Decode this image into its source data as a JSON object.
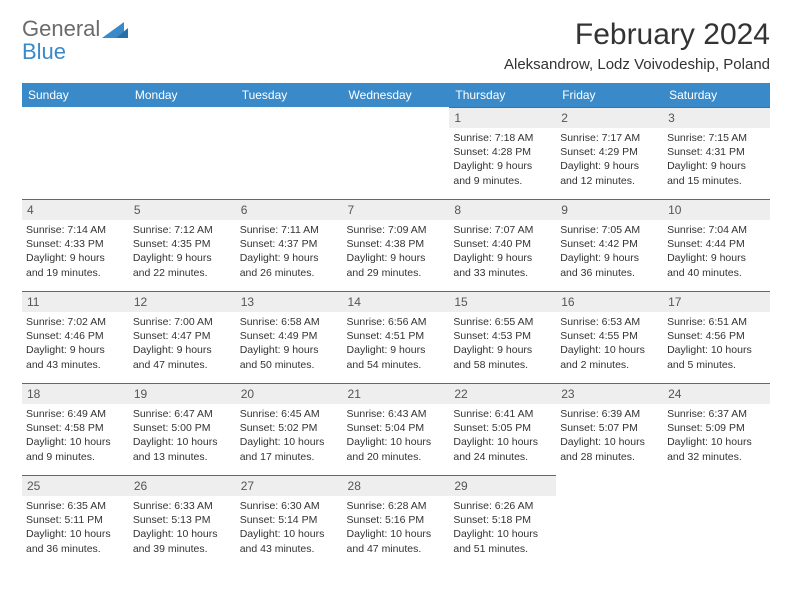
{
  "logo": {
    "text1": "General",
    "text2": "Blue"
  },
  "title": "February 2024",
  "location": "Aleksandrow, Lodz Voivodeship, Poland",
  "colors": {
    "header_bg": "#3a8ac9",
    "header_text": "#ffffff",
    "daynum_bg": "#eeeeee",
    "border": "#5a6a78",
    "body_text": "#333333",
    "logo_gray": "#6b6b6b",
    "logo_blue": "#3a8ac9"
  },
  "weekdays": [
    "Sunday",
    "Monday",
    "Tuesday",
    "Wednesday",
    "Thursday",
    "Friday",
    "Saturday"
  ],
  "weeks": [
    [
      null,
      null,
      null,
      null,
      {
        "n": "1",
        "sr": "Sunrise: 7:18 AM",
        "ss": "Sunset: 4:28 PM",
        "dl1": "Daylight: 9 hours",
        "dl2": "and 9 minutes."
      },
      {
        "n": "2",
        "sr": "Sunrise: 7:17 AM",
        "ss": "Sunset: 4:29 PM",
        "dl1": "Daylight: 9 hours",
        "dl2": "and 12 minutes."
      },
      {
        "n": "3",
        "sr": "Sunrise: 7:15 AM",
        "ss": "Sunset: 4:31 PM",
        "dl1": "Daylight: 9 hours",
        "dl2": "and 15 minutes."
      }
    ],
    [
      {
        "n": "4",
        "sr": "Sunrise: 7:14 AM",
        "ss": "Sunset: 4:33 PM",
        "dl1": "Daylight: 9 hours",
        "dl2": "and 19 minutes."
      },
      {
        "n": "5",
        "sr": "Sunrise: 7:12 AM",
        "ss": "Sunset: 4:35 PM",
        "dl1": "Daylight: 9 hours",
        "dl2": "and 22 minutes."
      },
      {
        "n": "6",
        "sr": "Sunrise: 7:11 AM",
        "ss": "Sunset: 4:37 PM",
        "dl1": "Daylight: 9 hours",
        "dl2": "and 26 minutes."
      },
      {
        "n": "7",
        "sr": "Sunrise: 7:09 AM",
        "ss": "Sunset: 4:38 PM",
        "dl1": "Daylight: 9 hours",
        "dl2": "and 29 minutes."
      },
      {
        "n": "8",
        "sr": "Sunrise: 7:07 AM",
        "ss": "Sunset: 4:40 PM",
        "dl1": "Daylight: 9 hours",
        "dl2": "and 33 minutes."
      },
      {
        "n": "9",
        "sr": "Sunrise: 7:05 AM",
        "ss": "Sunset: 4:42 PM",
        "dl1": "Daylight: 9 hours",
        "dl2": "and 36 minutes."
      },
      {
        "n": "10",
        "sr": "Sunrise: 7:04 AM",
        "ss": "Sunset: 4:44 PM",
        "dl1": "Daylight: 9 hours",
        "dl2": "and 40 minutes."
      }
    ],
    [
      {
        "n": "11",
        "sr": "Sunrise: 7:02 AM",
        "ss": "Sunset: 4:46 PM",
        "dl1": "Daylight: 9 hours",
        "dl2": "and 43 minutes."
      },
      {
        "n": "12",
        "sr": "Sunrise: 7:00 AM",
        "ss": "Sunset: 4:47 PM",
        "dl1": "Daylight: 9 hours",
        "dl2": "and 47 minutes."
      },
      {
        "n": "13",
        "sr": "Sunrise: 6:58 AM",
        "ss": "Sunset: 4:49 PM",
        "dl1": "Daylight: 9 hours",
        "dl2": "and 50 minutes."
      },
      {
        "n": "14",
        "sr": "Sunrise: 6:56 AM",
        "ss": "Sunset: 4:51 PM",
        "dl1": "Daylight: 9 hours",
        "dl2": "and 54 minutes."
      },
      {
        "n": "15",
        "sr": "Sunrise: 6:55 AM",
        "ss": "Sunset: 4:53 PM",
        "dl1": "Daylight: 9 hours",
        "dl2": "and 58 minutes."
      },
      {
        "n": "16",
        "sr": "Sunrise: 6:53 AM",
        "ss": "Sunset: 4:55 PM",
        "dl1": "Daylight: 10 hours",
        "dl2": "and 2 minutes."
      },
      {
        "n": "17",
        "sr": "Sunrise: 6:51 AM",
        "ss": "Sunset: 4:56 PM",
        "dl1": "Daylight: 10 hours",
        "dl2": "and 5 minutes."
      }
    ],
    [
      {
        "n": "18",
        "sr": "Sunrise: 6:49 AM",
        "ss": "Sunset: 4:58 PM",
        "dl1": "Daylight: 10 hours",
        "dl2": "and 9 minutes."
      },
      {
        "n": "19",
        "sr": "Sunrise: 6:47 AM",
        "ss": "Sunset: 5:00 PM",
        "dl1": "Daylight: 10 hours",
        "dl2": "and 13 minutes."
      },
      {
        "n": "20",
        "sr": "Sunrise: 6:45 AM",
        "ss": "Sunset: 5:02 PM",
        "dl1": "Daylight: 10 hours",
        "dl2": "and 17 minutes."
      },
      {
        "n": "21",
        "sr": "Sunrise: 6:43 AM",
        "ss": "Sunset: 5:04 PM",
        "dl1": "Daylight: 10 hours",
        "dl2": "and 20 minutes."
      },
      {
        "n": "22",
        "sr": "Sunrise: 6:41 AM",
        "ss": "Sunset: 5:05 PM",
        "dl1": "Daylight: 10 hours",
        "dl2": "and 24 minutes."
      },
      {
        "n": "23",
        "sr": "Sunrise: 6:39 AM",
        "ss": "Sunset: 5:07 PM",
        "dl1": "Daylight: 10 hours",
        "dl2": "and 28 minutes."
      },
      {
        "n": "24",
        "sr": "Sunrise: 6:37 AM",
        "ss": "Sunset: 5:09 PM",
        "dl1": "Daylight: 10 hours",
        "dl2": "and 32 minutes."
      }
    ],
    [
      {
        "n": "25",
        "sr": "Sunrise: 6:35 AM",
        "ss": "Sunset: 5:11 PM",
        "dl1": "Daylight: 10 hours",
        "dl2": "and 36 minutes."
      },
      {
        "n": "26",
        "sr": "Sunrise: 6:33 AM",
        "ss": "Sunset: 5:13 PM",
        "dl1": "Daylight: 10 hours",
        "dl2": "and 39 minutes."
      },
      {
        "n": "27",
        "sr": "Sunrise: 6:30 AM",
        "ss": "Sunset: 5:14 PM",
        "dl1": "Daylight: 10 hours",
        "dl2": "and 43 minutes."
      },
      {
        "n": "28",
        "sr": "Sunrise: 6:28 AM",
        "ss": "Sunset: 5:16 PM",
        "dl1": "Daylight: 10 hours",
        "dl2": "and 47 minutes."
      },
      {
        "n": "29",
        "sr": "Sunrise: 6:26 AM",
        "ss": "Sunset: 5:18 PM",
        "dl1": "Daylight: 10 hours",
        "dl2": "and 51 minutes."
      },
      null,
      null
    ]
  ]
}
